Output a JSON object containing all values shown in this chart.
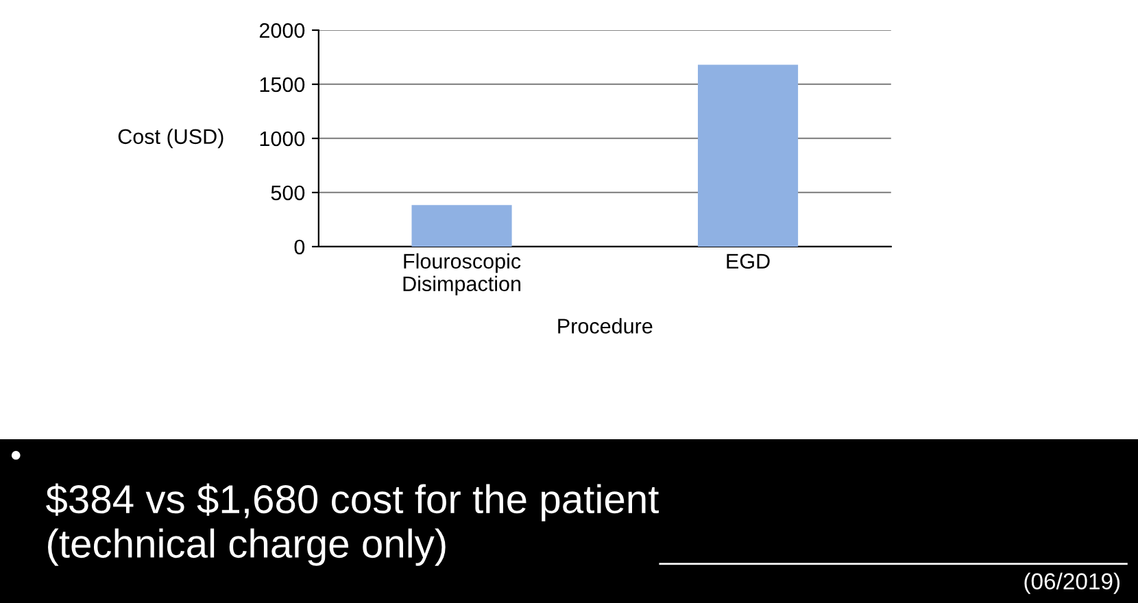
{
  "chart_data": {
    "type": "bar",
    "categories": [
      "Flouroscopic\nDisimpaction",
      "EGD"
    ],
    "values": [
      384,
      1680
    ],
    "color": "#8fb1e3",
    "xlabel": "Procedure",
    "ylabel": "Cost (USD)",
    "ylim": [
      0,
      2000
    ],
    "yticks": [
      0,
      500,
      1000,
      1500,
      2000
    ],
    "grid": "y",
    "annotations": [
      "$384 vs $1,680 cost for the patient\n(technical charge only)",
      "(06/2019)"
    ]
  }
}
